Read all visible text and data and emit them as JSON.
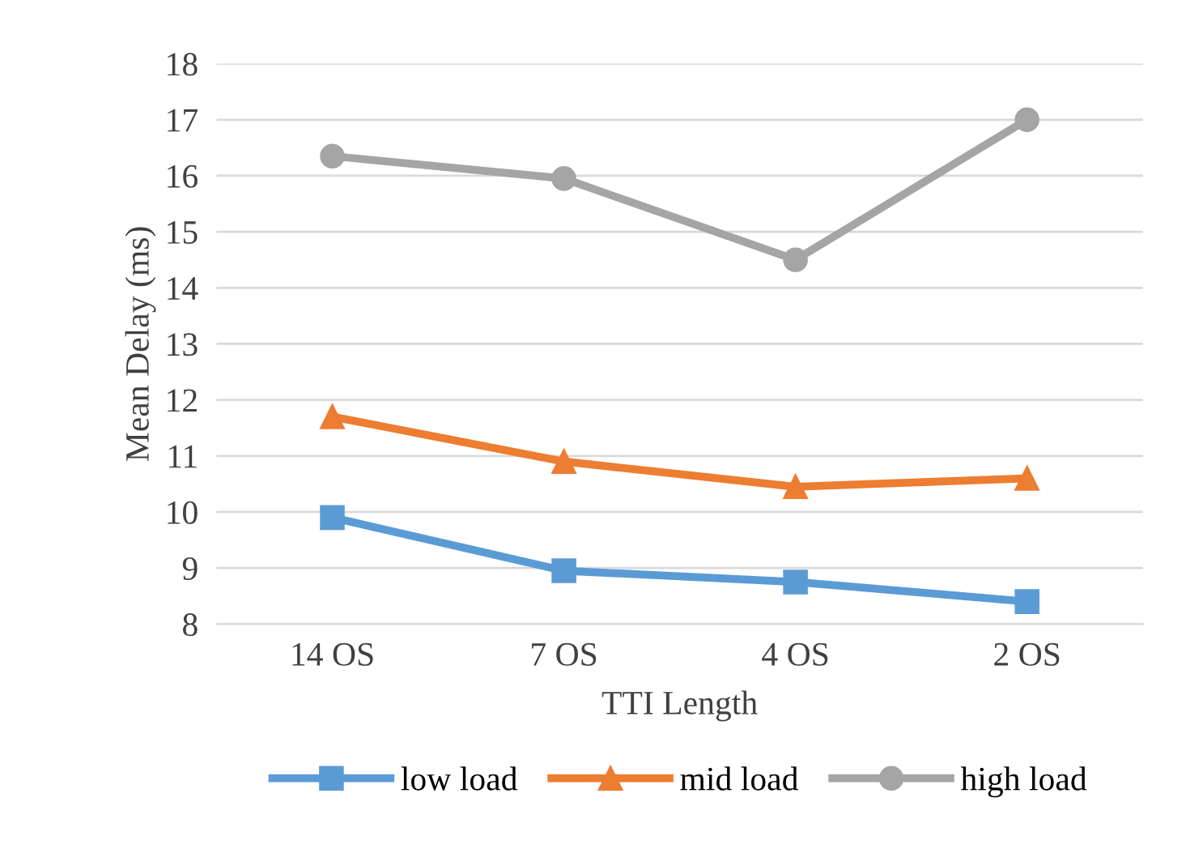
{
  "chart_data": {
    "type": "line",
    "xlabel": "TTI Length",
    "ylabel": "Mean Delay (ms)",
    "categories": [
      "14 OS",
      "7 OS",
      "4 OS",
      "2 OS"
    ],
    "series": [
      {
        "name": "low load",
        "color": "#5b9bd5",
        "marker": "square",
        "values": [
          9.9,
          8.95,
          8.75,
          8.4
        ]
      },
      {
        "name": "mid load",
        "color": "#ed7d31",
        "marker": "triangle",
        "values": [
          11.7,
          10.9,
          10.45,
          10.6
        ]
      },
      {
        "name": "high load",
        "color": "#a5a5a5",
        "marker": "circle",
        "values": [
          16.35,
          15.95,
          14.5,
          17.0
        ]
      }
    ],
    "ylim": [
      8,
      18
    ],
    "yticks": [
      8,
      9,
      10,
      11,
      12,
      13,
      14,
      15,
      16,
      17,
      18
    ],
    "grid": "y",
    "legend": "bottom",
    "line_style": "solid"
  }
}
